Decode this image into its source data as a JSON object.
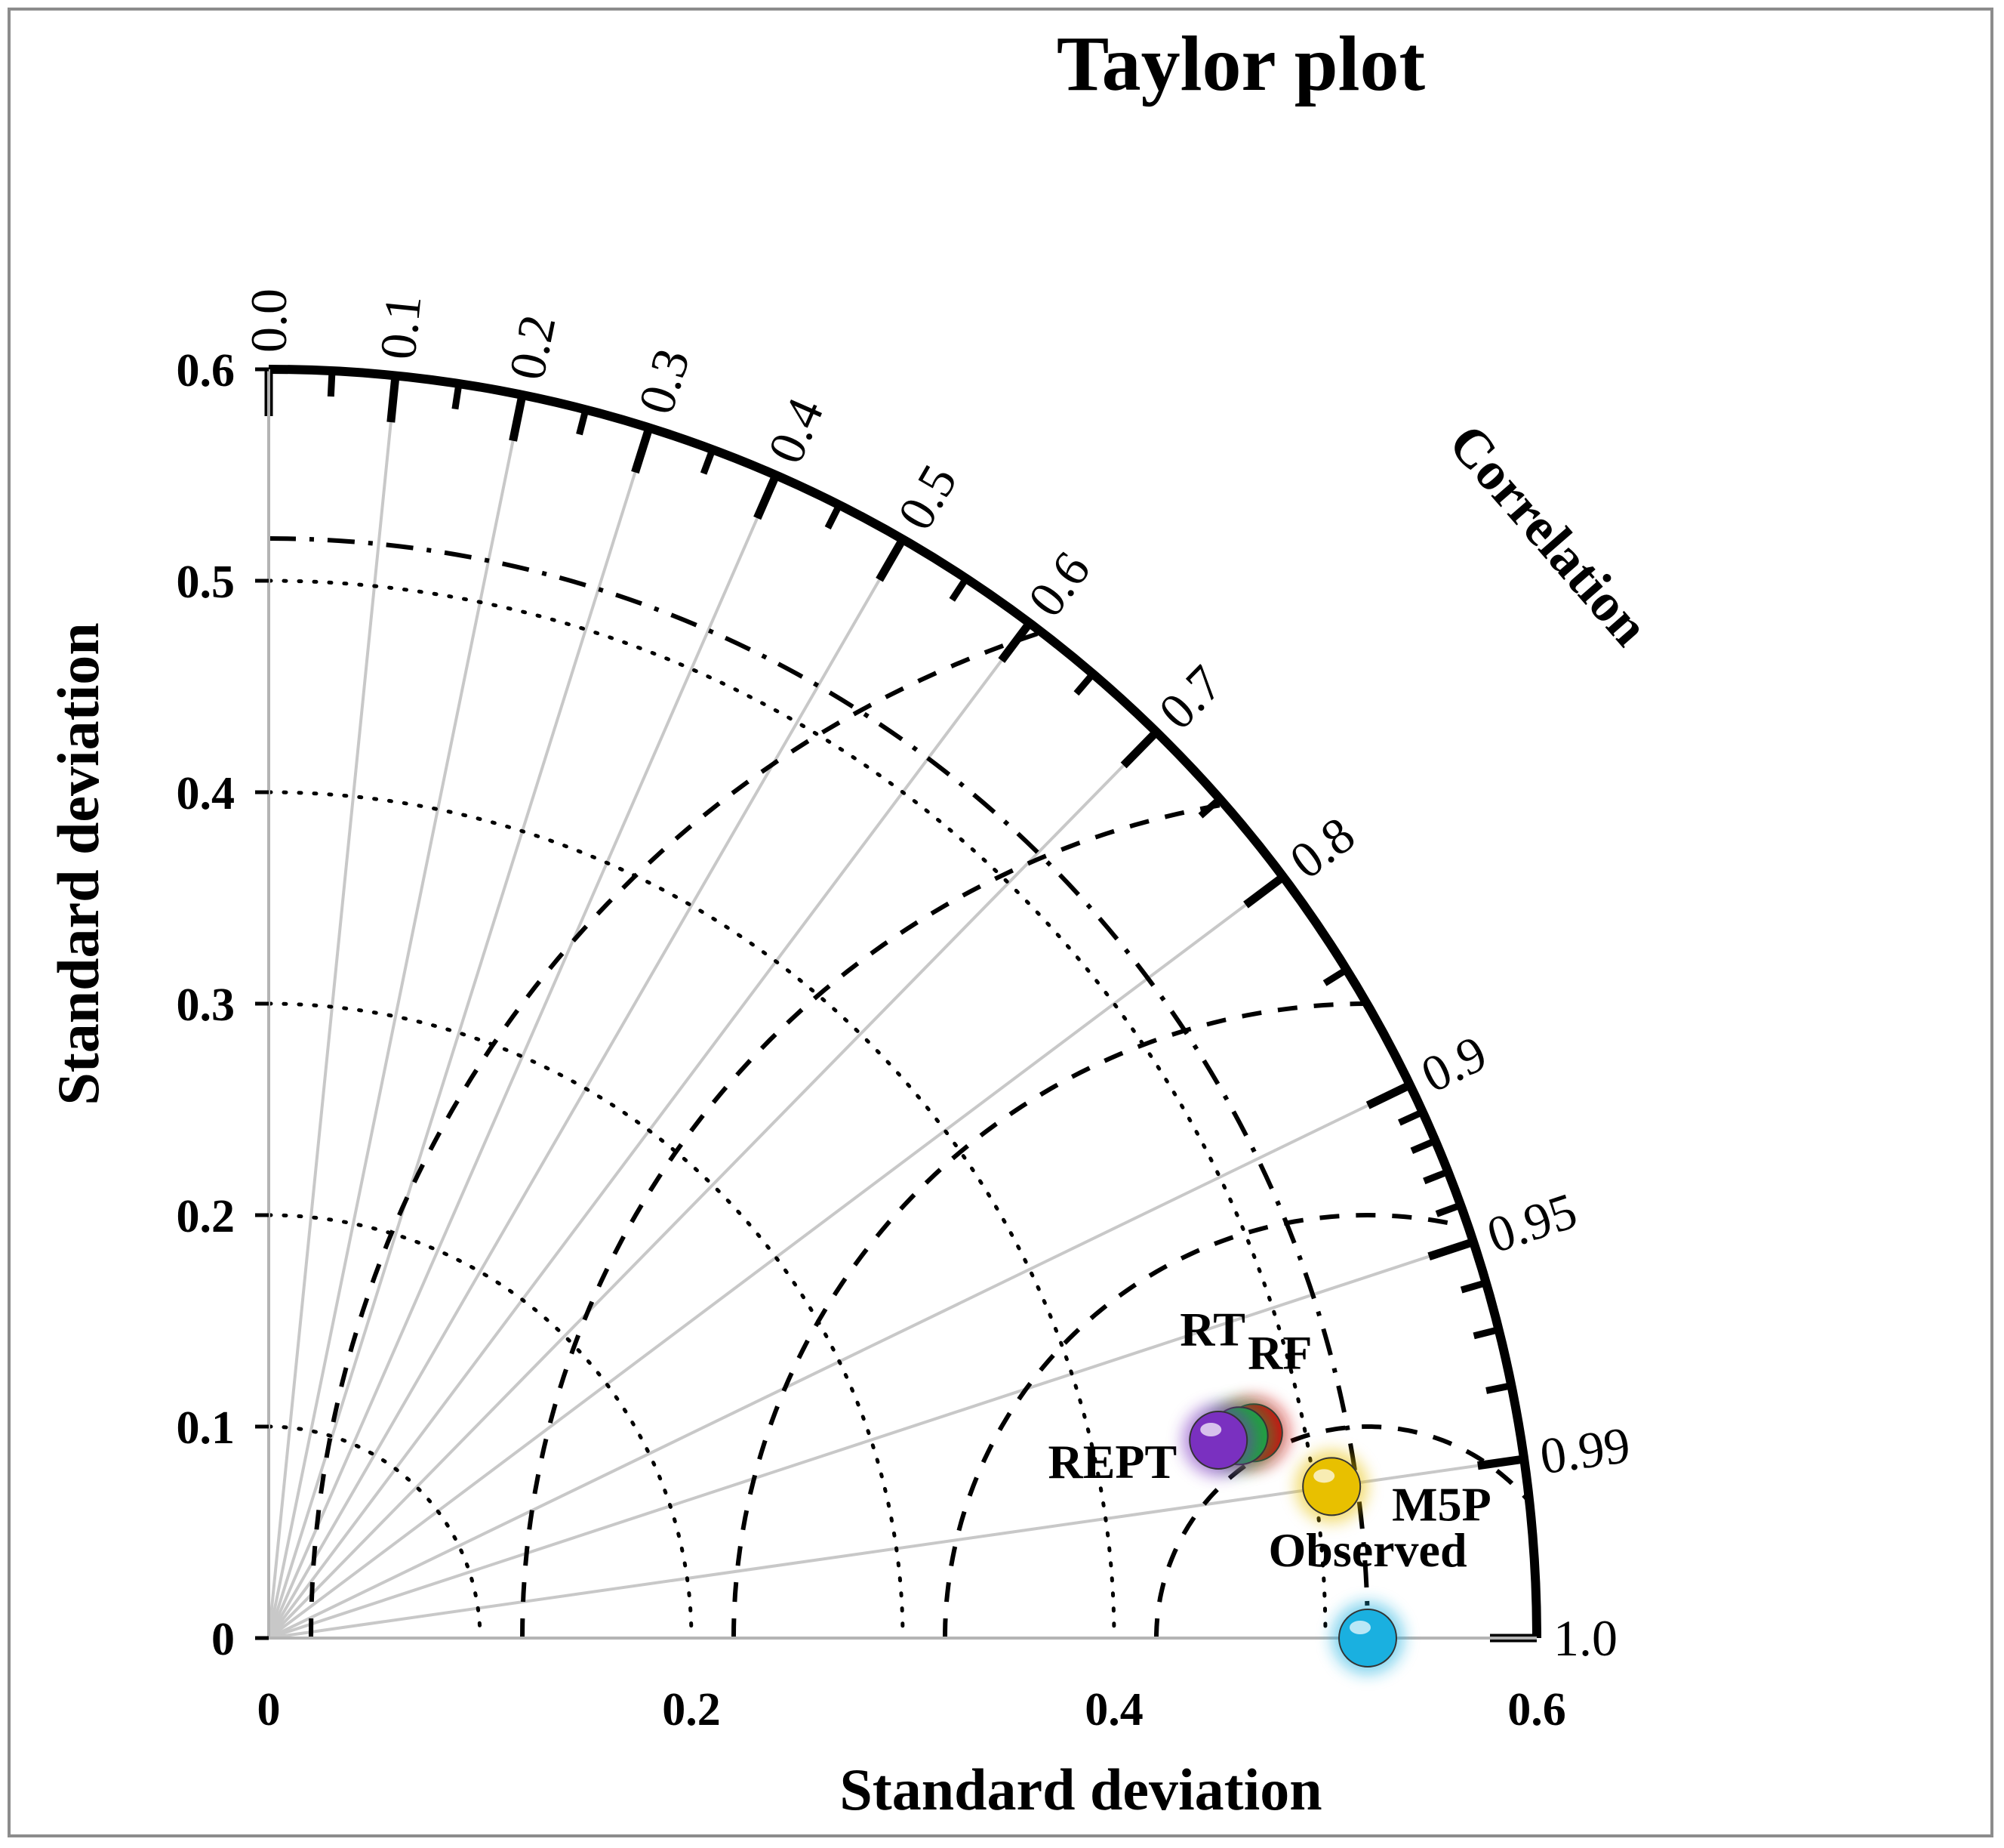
{
  "chart_data": {
    "type": "taylor",
    "title": "Taylor plot",
    "xlabel": "Standard deviation",
    "ylabel": "Standard deviation",
    "arc_label": "Correlation",
    "std_range": [
      0,
      0.6
    ],
    "std_ticks": [
      "0",
      "0.1",
      "0.2",
      "0.3",
      "0.4",
      "0.5",
      "0.6"
    ],
    "x_ticks": [
      "0",
      "0.2",
      "0.4",
      "0.6"
    ],
    "correlation_labels": [
      "0.0",
      "0.1",
      "0.2",
      "0.3",
      "0.4",
      "0.5",
      "0.6",
      "0.7",
      "0.8",
      "0.9",
      "0.95",
      "0.99",
      "1.0"
    ],
    "reference_std": 0.52,
    "crmse_contours": [
      0.1,
      0.2,
      0.3,
      0.4,
      0.5
    ],
    "points": [
      {
        "name": "Observed",
        "std": 0.52,
        "corr": 1.0,
        "color": "#1ab0e0"
      },
      {
        "name": "M5P",
        "std": 0.508,
        "corr": 0.99,
        "color": "#e8c000"
      },
      {
        "name": "RF",
        "std": 0.476,
        "corr": 0.979,
        "color": "#d01010"
      },
      {
        "name": "RT",
        "std": 0.469,
        "corr": 0.979,
        "color": "#20a040"
      },
      {
        "name": "REPT",
        "std": 0.459,
        "corr": 0.979,
        "color": "#7a30c0"
      }
    ]
  }
}
